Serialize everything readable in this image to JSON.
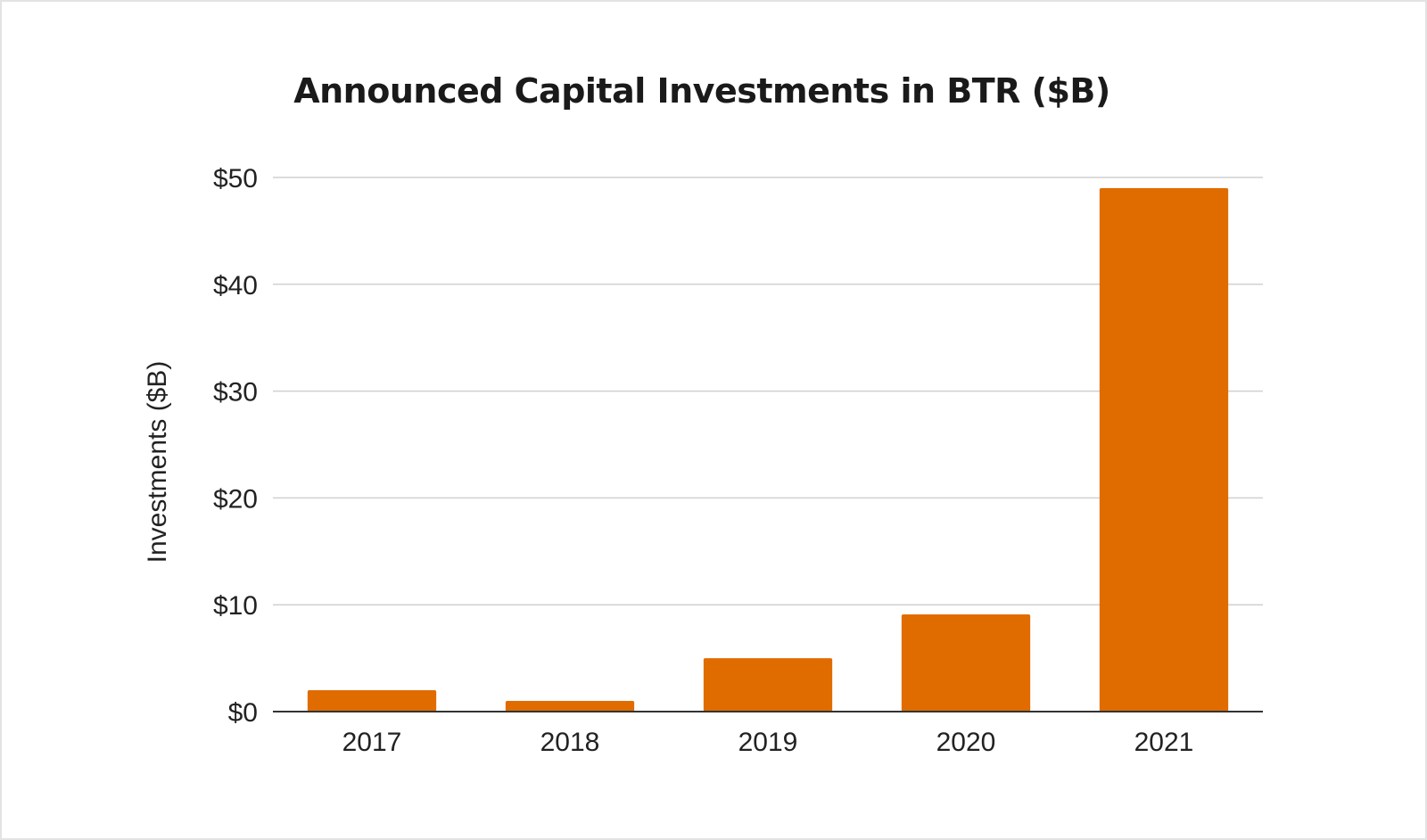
{
  "chart_data": {
    "type": "bar",
    "title": "Announced Capital Investments in BTR ($B)",
    "xlabel": "",
    "ylabel": "Investments ($B)",
    "categories": [
      "2017",
      "2018",
      "2019",
      "2020",
      "2021"
    ],
    "values": [
      2,
      1,
      5,
      9.1,
      49
    ],
    "ylim": [
      0,
      50
    ],
    "yticks": [
      0,
      10,
      20,
      30,
      40,
      50
    ],
    "ytick_labels": [
      "$0",
      "$10",
      "$20",
      "$30",
      "$40",
      "$50"
    ],
    "grid": true,
    "legend": "none",
    "colors": {
      "bar": "#E06C00",
      "grid": "#d0d0d0",
      "axis": "#333333"
    }
  }
}
